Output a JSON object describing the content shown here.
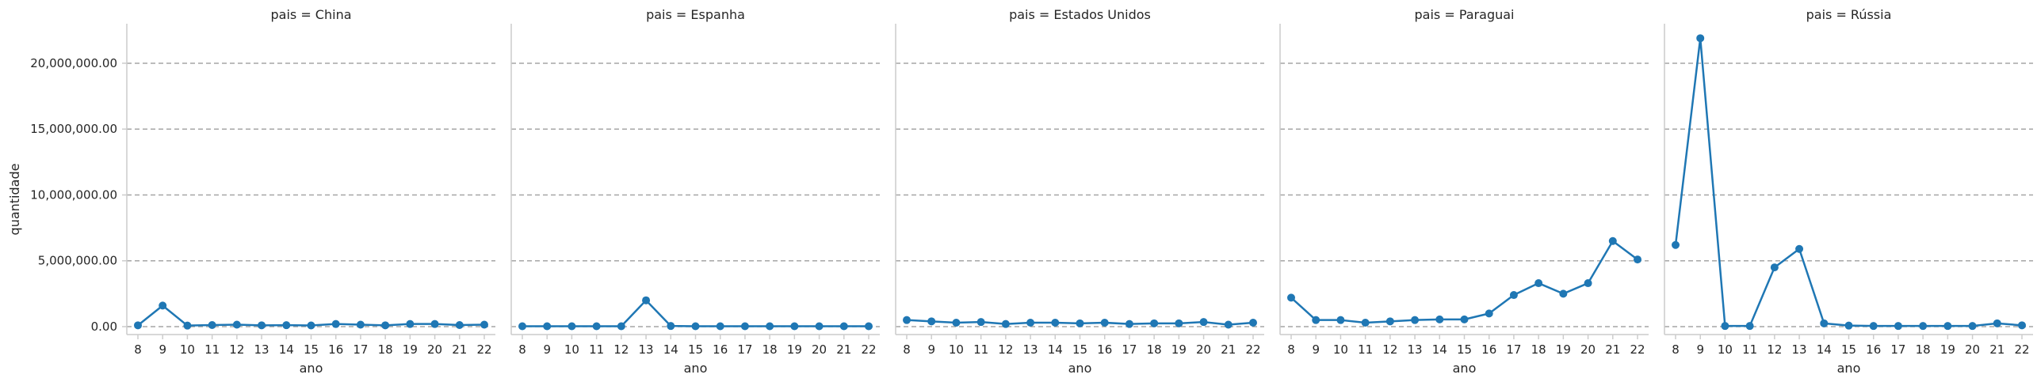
{
  "chart_data": {
    "type": "line",
    "facet_variable": "pais",
    "facet_title_format": "pais = {value}",
    "xlabel": "ano",
    "ylabel": "quantidade",
    "x": [
      8,
      9,
      10,
      11,
      12,
      13,
      14,
      15,
      16,
      17,
      18,
      19,
      20,
      21,
      22
    ],
    "ylim": [
      -600000,
      23000000
    ],
    "yticks": [
      0,
      5000000,
      10000000,
      15000000,
      20000000
    ],
    "ytick_labels": [
      "0.00",
      "5,000,000.00",
      "10,000,000.00",
      "15,000,000.00",
      "20,000,000.00"
    ],
    "grid": "horizontal dashed",
    "color": "#1f77b4",
    "facets": [
      {
        "name": "China",
        "values": [
          100000,
          1600000,
          80000,
          120000,
          150000,
          100000,
          110000,
          90000,
          200000,
          150000,
          100000,
          200000,
          200000,
          120000,
          150000
        ]
      },
      {
        "name": "Espanha",
        "values": [
          30000,
          30000,
          30000,
          30000,
          30000,
          2000000,
          50000,
          30000,
          30000,
          30000,
          30000,
          30000,
          30000,
          30000,
          30000
        ]
      },
      {
        "name": "Estados Unidos",
        "values": [
          500000,
          400000,
          300000,
          350000,
          200000,
          300000,
          300000,
          250000,
          300000,
          200000,
          250000,
          250000,
          350000,
          150000,
          300000
        ]
      },
      {
        "name": "Paraguai",
        "values": [
          2200000,
          500000,
          500000,
          300000,
          400000,
          500000,
          550000,
          550000,
          1000000,
          2400000,
          3300000,
          2500000,
          3300000,
          6500000,
          5100000
        ]
      },
      {
        "name": "Rússia",
        "values": [
          6200000,
          21900000,
          50000,
          50000,
          4500000,
          5900000,
          250000,
          80000,
          50000,
          50000,
          50000,
          50000,
          50000,
          250000,
          100000
        ]
      }
    ]
  }
}
